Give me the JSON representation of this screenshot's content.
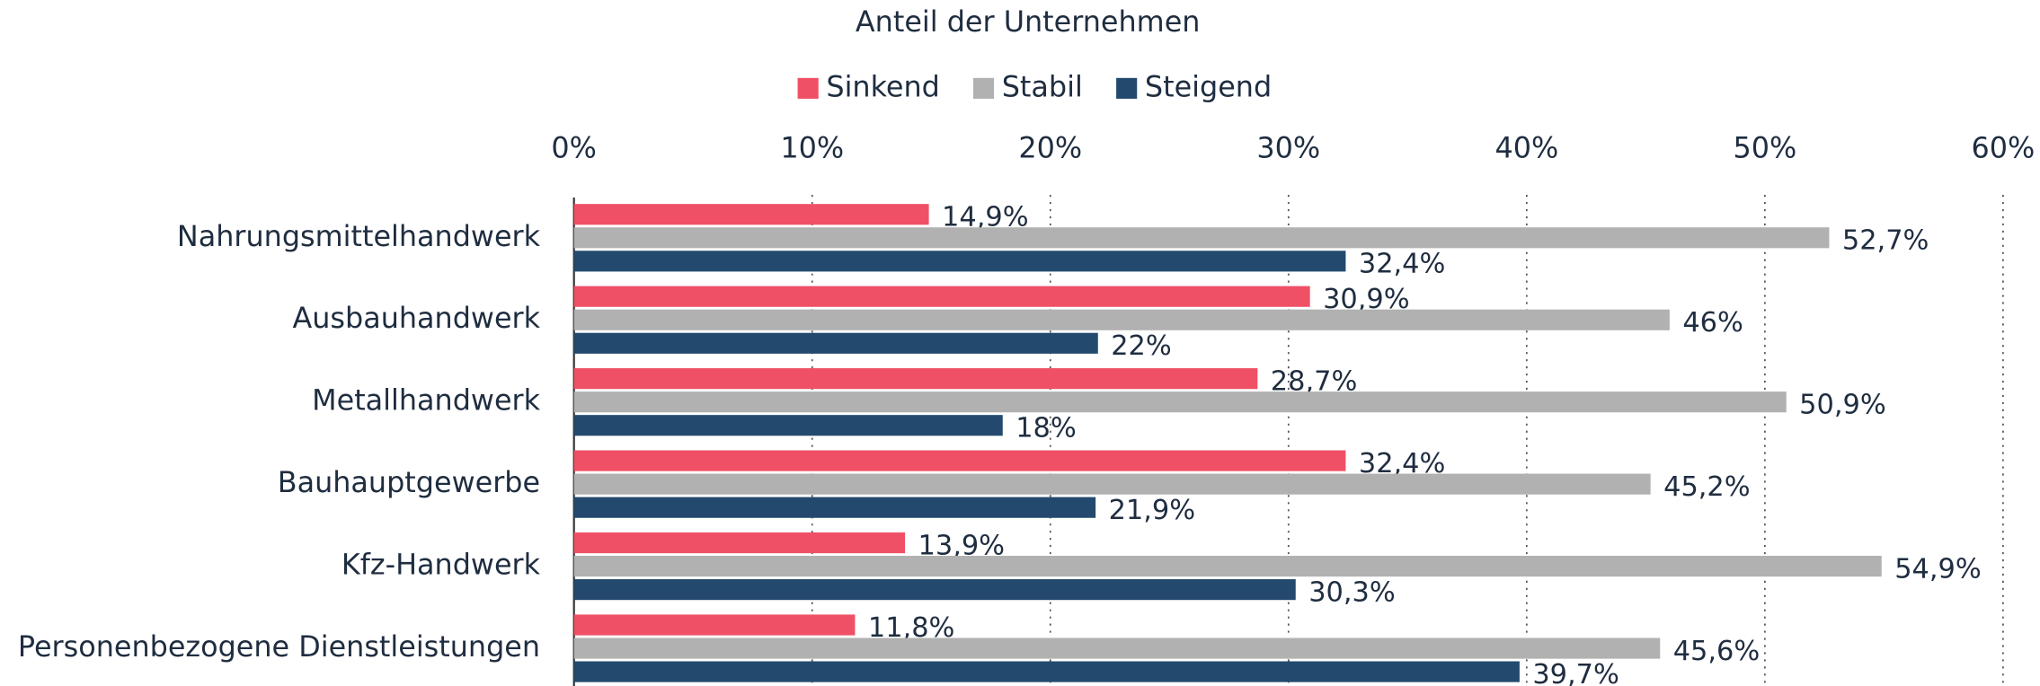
{
  "chart_data": {
    "type": "hbar",
    "title": "Anteil der Unternehmen",
    "categories": [
      "Nahrungsmittelhandwerk",
      "Ausbauhandwerk",
      "Metallhandwerk",
      "Bauhauptgewerbe",
      "Kfz-Handwerk",
      "Personenbezogene Dienstleistungen"
    ],
    "series": [
      {
        "name": "Sinkend",
        "color": "#ef5066",
        "values": [
          14.9,
          30.9,
          28.7,
          32.4,
          13.9,
          11.8
        ],
        "value_labels": [
          "14,9%",
          "30,9%",
          "28,7%",
          "32,4%",
          "13,9%",
          "11,8%"
        ]
      },
      {
        "name": "Stabil",
        "color": "#b1b1b2",
        "values": [
          52.7,
          46,
          50.9,
          45.2,
          54.9,
          45.6
        ],
        "value_labels": [
          "52,7%",
          "46%",
          "50,9%",
          "45,2%",
          "54,9%",
          "45,6%"
        ]
      },
      {
        "name": "Steigend",
        "color": "#234a6e",
        "values": [
          32.4,
          22,
          18,
          21.9,
          30.3,
          39.7
        ],
        "value_labels": [
          "32,4%",
          "22%",
          "18%",
          "21,9%",
          "30,3%",
          "39,7%"
        ]
      }
    ],
    "xlim": [
      0,
      60
    ],
    "xticks": [
      {
        "value": 0,
        "label": "0%"
      },
      {
        "value": 10,
        "label": "10%"
      },
      {
        "value": 20,
        "label": "20%"
      },
      {
        "value": 30,
        "label": "30%"
      },
      {
        "value": 40,
        "label": "40%"
      },
      {
        "value": 50,
        "label": "50%"
      },
      {
        "value": 60,
        "label": "60%"
      }
    ],
    "grid": true,
    "legend": "top"
  }
}
